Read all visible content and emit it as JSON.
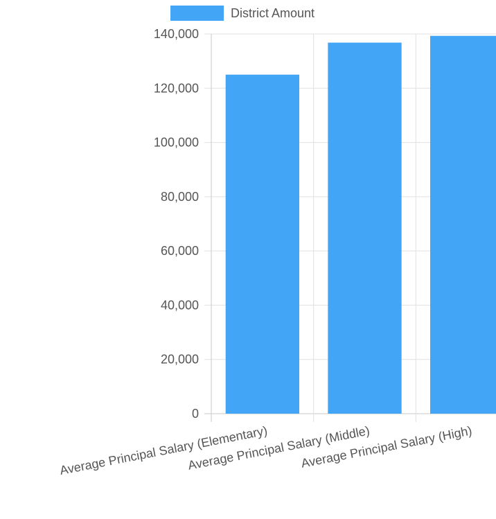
{
  "chart_data": {
    "type": "bar",
    "categories": [
      "Average Principal Salary (Elementary)",
      "Average Principal Salary (Middle)",
      "Average Principal Salary (High)"
    ],
    "series": [
      {
        "name": "District Amount",
        "values": [
          125000,
          136800,
          139300
        ],
        "color": "#42a5f5"
      }
    ],
    "y_ticks": [
      "0",
      "20,000",
      "40,000",
      "60,000",
      "80,000",
      "100,000",
      "120,000",
      "140,000"
    ],
    "ylim": [
      0,
      140000
    ],
    "grid": true,
    "legend_position": "top"
  }
}
